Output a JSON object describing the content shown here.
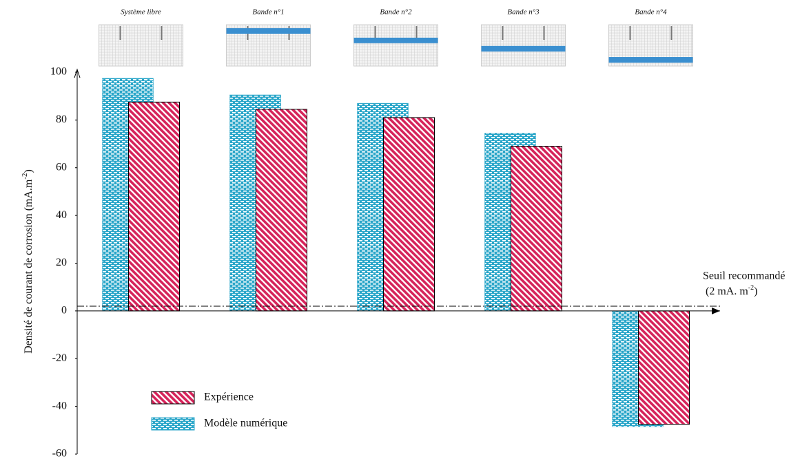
{
  "chart_data": {
    "type": "bar",
    "categories": [
      "Système libre",
      "Bande n°1",
      "Bande n°2",
      "Bande n°3",
      "Bande n°4"
    ],
    "series": [
      {
        "name": "Modèle numérique",
        "color": "#2aa6c9",
        "values": [
          97.5,
          90.5,
          87,
          74.5,
          -48.5
        ]
      },
      {
        "name": "Expérience",
        "color": "#d6235a",
        "values": [
          87.5,
          84.5,
          81,
          69,
          -47.5
        ]
      }
    ],
    "y_label": [
      "Densité de courant de corrosion (mA.m",
      "-2",
      ")"
    ],
    "ylim": [
      -60,
      100
    ],
    "yticks": [
      100,
      80,
      60,
      40,
      20,
      0,
      -20,
      -40,
      -60
    ],
    "grid": false,
    "threshold": {
      "value": 2,
      "label": "Seuil recommandé",
      "detail": [
        "(2 mA. m",
        "-2",
        ")"
      ]
    }
  }
}
